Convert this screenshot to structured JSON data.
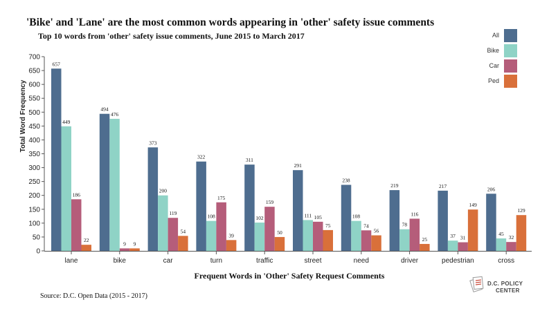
{
  "chart_data": {
    "type": "bar",
    "title": "'Bike' and 'Lane' are the most common words appearing in 'other' safety issue comments",
    "subtitle": "Top 10 words from 'other' safety issue comments, June 2015 to March 2017",
    "xlabel": "Frequent Words in 'Other' Safety Request Comments",
    "ylabel": "Total Word Frequency",
    "source": "Source: D.C. Open Data (2015 - 2017)",
    "ylim": [
      0,
      700
    ],
    "yticks": [
      0,
      50,
      100,
      150,
      200,
      250,
      300,
      350,
      400,
      450,
      500,
      550,
      600,
      650,
      700
    ],
    "grid": false,
    "legend_position": "top-right",
    "categories": [
      "lane",
      "bike",
      "car",
      "turn",
      "traffic",
      "street",
      "need",
      "driver",
      "pedestrian",
      "cross"
    ],
    "series": [
      {
        "name": "All",
        "color": "#4e6d8f",
        "values": [
          657,
          494,
          373,
          322,
          311,
          291,
          238,
          219,
          217,
          206
        ]
      },
      {
        "name": "Bike",
        "color": "#8fd3c6",
        "values": [
          449,
          476,
          200,
          108,
          102,
          111,
          108,
          78,
          37,
          45
        ]
      },
      {
        "name": "Car",
        "color": "#b55d7a",
        "values": [
          186,
          9,
          119,
          175,
          159,
          105,
          74,
          116,
          31,
          32
        ]
      },
      {
        "name": "Ped",
        "color": "#d9703a",
        "values": [
          22,
          9,
          54,
          39,
          50,
          75,
          56,
          25,
          149,
          129
        ]
      }
    ]
  },
  "logo": {
    "line1": "D.C. POLICY",
    "line2": "CENTER",
    "icon": "dc-policy-center-logo-icon"
  }
}
